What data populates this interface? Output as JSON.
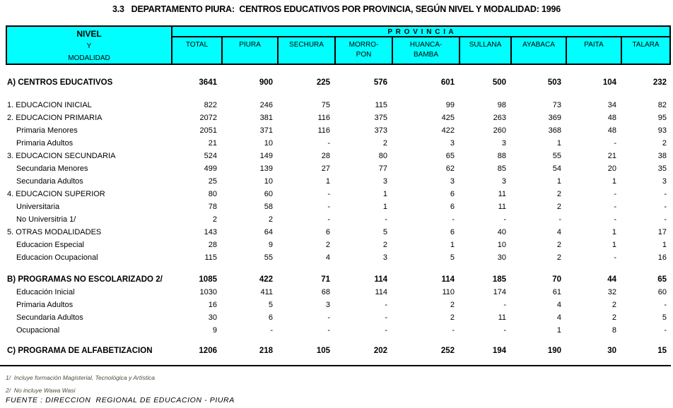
{
  "title": "3.3   DEPARTAMENTO PIURA:  CENTROS EDUCATIVOS POR PROVINCIA, SEGÚN NIVEL Y MODALIDAD: 1996",
  "colors": {
    "header_bg": "#00ffff",
    "border": "#000000",
    "footnote_text": "#4e4e3c"
  },
  "header": {
    "stub": {
      "line1": "NIVEL",
      "line2": "Y",
      "line3": "MODALIDAD"
    },
    "group_label": "P R O V I N C I A",
    "columns": [
      "TOTAL",
      "PIURA",
      "SECHURA",
      "MORRO-\nPON",
      "HUANCA-\nBAMBA",
      "SULLANA",
      "AYABACA",
      "PAITA",
      "TALARA"
    ]
  },
  "table": {
    "rows": [
      {
        "type": "section",
        "label": "A) CENTROS EDUCATIVOS",
        "values": [
          "3641",
          "900",
          "225",
          "576",
          "601",
          "500",
          "503",
          "104",
          "232"
        ]
      },
      {
        "type": "spacer",
        "size": "lg"
      },
      {
        "type": "item",
        "label": "1. EDUCACION INICIAL",
        "values": [
          "822",
          "246",
          "75",
          "115",
          "99",
          "98",
          "73",
          "34",
          "82"
        ]
      },
      {
        "type": "item",
        "label": "2. EDUCACION PRIMARIA",
        "values": [
          "2072",
          "381",
          "116",
          "375",
          "425",
          "263",
          "369",
          "48",
          "95"
        ]
      },
      {
        "type": "sub",
        "label": "Primaria Menores",
        "values": [
          "2051",
          "371",
          "116",
          "373",
          "422",
          "260",
          "368",
          "48",
          "93"
        ]
      },
      {
        "type": "sub",
        "label": "Primaria Adultos",
        "values": [
          "21",
          "10",
          "-",
          "2",
          "3",
          "3",
          "1",
          "-",
          "2"
        ]
      },
      {
        "type": "item",
        "label": "3. EDUCACION SECUNDARIA",
        "values": [
          "524",
          "149",
          "28",
          "80",
          "65",
          "88",
          "55",
          "21",
          "38"
        ]
      },
      {
        "type": "sub",
        "label": "Secundaria Menores",
        "values": [
          "499",
          "139",
          "27",
          "77",
          "62",
          "85",
          "54",
          "20",
          "35"
        ]
      },
      {
        "type": "sub",
        "label": "Secundaria Adultos",
        "values": [
          "25",
          "10",
          "1",
          "3",
          "3",
          "3",
          "1",
          "1",
          "3"
        ]
      },
      {
        "type": "item",
        "label": "4. EDUCACION SUPERIOR",
        "values": [
          "80",
          "60",
          "-",
          "1",
          "6",
          "11",
          "2",
          "-",
          "-"
        ]
      },
      {
        "type": "sub",
        "label": "Universitaria",
        "values": [
          "78",
          "58",
          "-",
          "1",
          "6",
          "11",
          "2",
          "-",
          "-"
        ]
      },
      {
        "type": "sub",
        "label": "No Universitria 1/",
        "values": [
          "2",
          "2",
          "-",
          "-",
          "-",
          "-",
          "-",
          "-",
          "-"
        ]
      },
      {
        "type": "item",
        "label": "5. OTRAS MODALIDADES",
        "values": [
          "143",
          "64",
          "6",
          "5",
          "6",
          "40",
          "4",
          "1",
          "17"
        ]
      },
      {
        "type": "sub",
        "label": "Educacion Especial",
        "values": [
          "28",
          "9",
          "2",
          "2",
          "1",
          "10",
          "2",
          "1",
          "1"
        ]
      },
      {
        "type": "sub",
        "label": "Educacion Ocupacional",
        "values": [
          "115",
          "55",
          "4",
          "3",
          "5",
          "30",
          "2",
          "-",
          "16"
        ]
      },
      {
        "type": "spacer",
        "size": "md"
      },
      {
        "type": "section",
        "label": "B) PROGRAMAS NO ESCOLARIZADO 2/",
        "values": [
          "1085",
          "422",
          "71",
          "114",
          "114",
          "185",
          "70",
          "44",
          "65"
        ]
      },
      {
        "type": "sub",
        "label": "Educación Inicial",
        "values": [
          "1030",
          "411",
          "68",
          "114",
          "110",
          "174",
          "61",
          "32",
          "60"
        ]
      },
      {
        "type": "sub",
        "label": "Primaria Adultos",
        "values": [
          "16",
          "5",
          "3",
          "-",
          "2",
          "-",
          "4",
          "2",
          "-"
        ]
      },
      {
        "type": "sub",
        "label": "Secundaria Adultos",
        "values": [
          "30",
          "6",
          "-",
          "-",
          "2",
          "11",
          "4",
          "2",
          "5"
        ]
      },
      {
        "type": "sub",
        "label": "Ocupacional",
        "values": [
          "9",
          "-",
          "-",
          "-",
          "-",
          "-",
          "1",
          "8",
          "-"
        ]
      },
      {
        "type": "spacer",
        "size": "sm"
      },
      {
        "type": "section",
        "label": "C) PROGRAMA DE ALFABETIZACION",
        "values": [
          "1206",
          "218",
          "105",
          "202",
          "252",
          "194",
          "190",
          "30",
          "15"
        ]
      }
    ]
  },
  "footnotes": [
    "1/  Incluye formación Magisterial, Tecnológica y Artística",
    "2/  No incluye Wawa Wasi"
  ],
  "source": "FUENTE : DIRECCION  REGIONAL DE EDUCACION - PIURA"
}
